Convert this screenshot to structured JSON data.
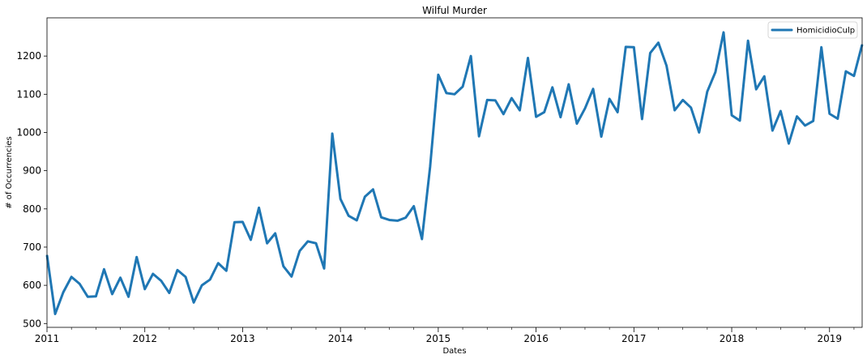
{
  "chart_data": {
    "type": "line",
    "title": "Wilful Murder",
    "xlabel": "Dates",
    "ylabel": "# of Occurrencies",
    "grid": false,
    "legend_position": "top-right",
    "colors": {
      "series": "#1f77b4",
      "axes": "#000000",
      "background": "#ffffff"
    },
    "x_start": "2011-01",
    "x_end": "2019-05",
    "x_tick_labels": [
      "2011",
      "2012",
      "2013",
      "2014",
      "2015",
      "2016",
      "2017",
      "2018",
      "2019"
    ],
    "ylim": [
      490,
      1300
    ],
    "y_tick_labels": [
      "500",
      "600",
      "700",
      "800",
      "900",
      "1000",
      "1100",
      "1200"
    ],
    "series": [
      {
        "name": "HomicidioCulp",
        "x": [
          "2011-01",
          "2011-02",
          "2011-03",
          "2011-04",
          "2011-05",
          "2011-06",
          "2011-07",
          "2011-08",
          "2011-09",
          "2011-10",
          "2011-11",
          "2011-12",
          "2012-01",
          "2012-02",
          "2012-03",
          "2012-04",
          "2012-05",
          "2012-06",
          "2012-07",
          "2012-08",
          "2012-09",
          "2012-10",
          "2012-11",
          "2012-12",
          "2013-01",
          "2013-02",
          "2013-03",
          "2013-04",
          "2013-05",
          "2013-06",
          "2013-07",
          "2013-08",
          "2013-09",
          "2013-10",
          "2013-11",
          "2013-12",
          "2014-01",
          "2014-02",
          "2014-03",
          "2014-04",
          "2014-05",
          "2014-06",
          "2014-07",
          "2014-08",
          "2014-09",
          "2014-10",
          "2014-11",
          "2014-12",
          "2015-01",
          "2015-02",
          "2015-03",
          "2015-04",
          "2015-05",
          "2015-06",
          "2015-07",
          "2015-08",
          "2015-09",
          "2015-10",
          "2015-11",
          "2015-12",
          "2016-01",
          "2016-02",
          "2016-03",
          "2016-04",
          "2016-05",
          "2016-06",
          "2016-07",
          "2016-08",
          "2016-09",
          "2016-10",
          "2016-11",
          "2016-12",
          "2017-01",
          "2017-02",
          "2017-03",
          "2017-04",
          "2017-05",
          "2017-06",
          "2017-07",
          "2017-08",
          "2017-09",
          "2017-10",
          "2017-11",
          "2017-12",
          "2018-01",
          "2018-02",
          "2018-03",
          "2018-04",
          "2018-05",
          "2018-06",
          "2018-07",
          "2018-08",
          "2018-09",
          "2018-10",
          "2018-11",
          "2018-12",
          "2019-01",
          "2019-02",
          "2019-03",
          "2019-04",
          "2019-05"
        ],
        "values": [
          679,
          525,
          582,
          622,
          604,
          570,
          571,
          642,
          577,
          620,
          570,
          674,
          590,
          630,
          612,
          580,
          640,
          622,
          555,
          600,
          615,
          658,
          638,
          765,
          766,
          719,
          803,
          710,
          736,
          650,
          623,
          690,
          715,
          710,
          644,
          997,
          826,
          782,
          770,
          832,
          851,
          778,
          771,
          769,
          777,
          807,
          721,
          910,
          1151,
          1103,
          1100,
          1120,
          1200,
          990,
          1085,
          1084,
          1048,
          1090,
          1058,
          1195,
          1041,
          1053,
          1118,
          1040,
          1126,
          1023,
          1063,
          1114,
          989,
          1088,
          1053,
          1224,
          1223,
          1035,
          1208,
          1235,
          1175,
          1058,
          1085,
          1065,
          1000,
          1107,
          1158,
          1262,
          1045,
          1031,
          1240,
          1113,
          1147,
          1005,
          1056,
          971,
          1042,
          1018,
          1030,
          1223,
          1049,
          1036,
          1160,
          1148,
          1230
        ]
      }
    ]
  }
}
